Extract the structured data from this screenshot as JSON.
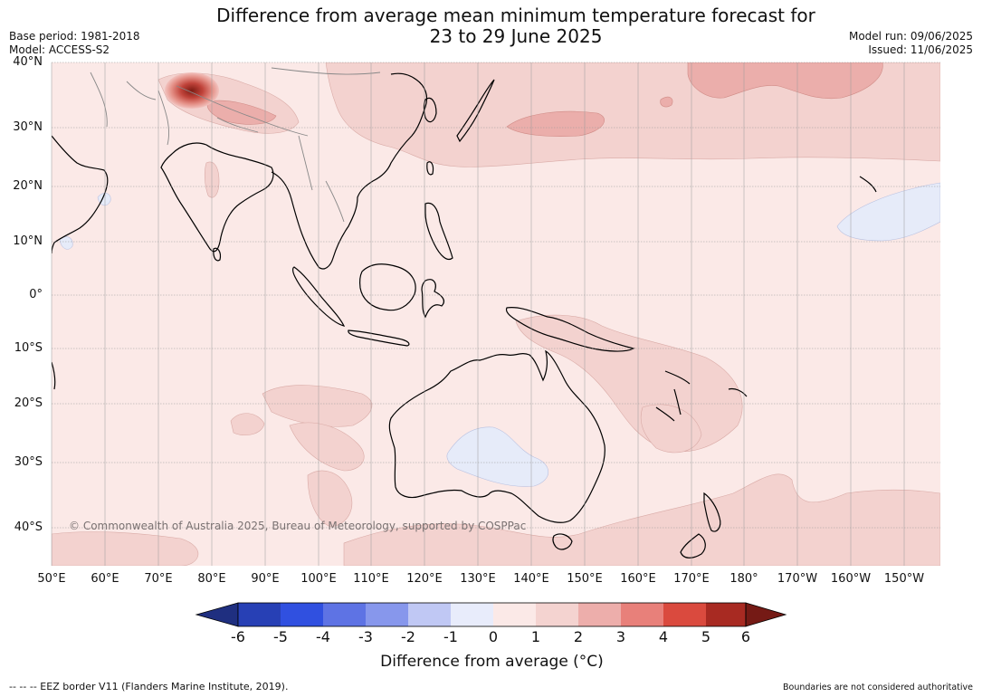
{
  "header": {
    "title_line1": "Difference from average mean minimum temperature forecast for",
    "title_line2": "23 to 29 June 2025",
    "base_period": "Base period: 1981-2018",
    "model": "Model: ACCESS-S2",
    "model_run": "Model run: 09/06/2025",
    "issued": "Issued: 11/06/2025"
  },
  "map": {
    "lat_labels": [
      "40°N",
      "30°N",
      "20°N",
      "10°N",
      "0°",
      "10°S",
      "20°S",
      "30°S",
      "40°S"
    ],
    "lon_labels": [
      "50°E",
      "60°E",
      "70°E",
      "80°E",
      "90°E",
      "100°E",
      "110°E",
      "120°E",
      "130°E",
      "140°E",
      "150°E",
      "160°E",
      "170°E",
      "180°",
      "170°W",
      "160°W",
      "150°W"
    ],
    "copyright": "© Commonwealth of Australia 2025, Bureau of Meteorology, supported by COSPPac",
    "background_color": "#fbe9e7",
    "anomaly_colors": {
      "neg_0_1": "#e6ebf9",
      "pos_1_2": "#f3d2cf",
      "pos_2_3": "#ebaeab",
      "pos_high": "#b83a2e"
    }
  },
  "colorbar": {
    "colors": [
      "#1f2f80",
      "#2740b5",
      "#3050e0",
      "#5e73e4",
      "#8797ec",
      "#c0c8f4",
      "#e8ecfb",
      "#fbe9e7",
      "#f4d3d0",
      "#edaeab",
      "#e8807a",
      "#da4a3e",
      "#a82a22",
      "#751a15"
    ],
    "ticks": [
      "-6",
      "-5",
      "-4",
      "-3",
      "-2",
      "-1",
      "0",
      "1",
      "2",
      "3",
      "4",
      "5",
      "6"
    ],
    "label": "Difference from average (°C)"
  },
  "footer": {
    "eez_note": "--  --  -- EEZ border V11 (Flanders Marine Institute, 2019).",
    "disclaimer": "Boundaries are not considered authoritative"
  }
}
